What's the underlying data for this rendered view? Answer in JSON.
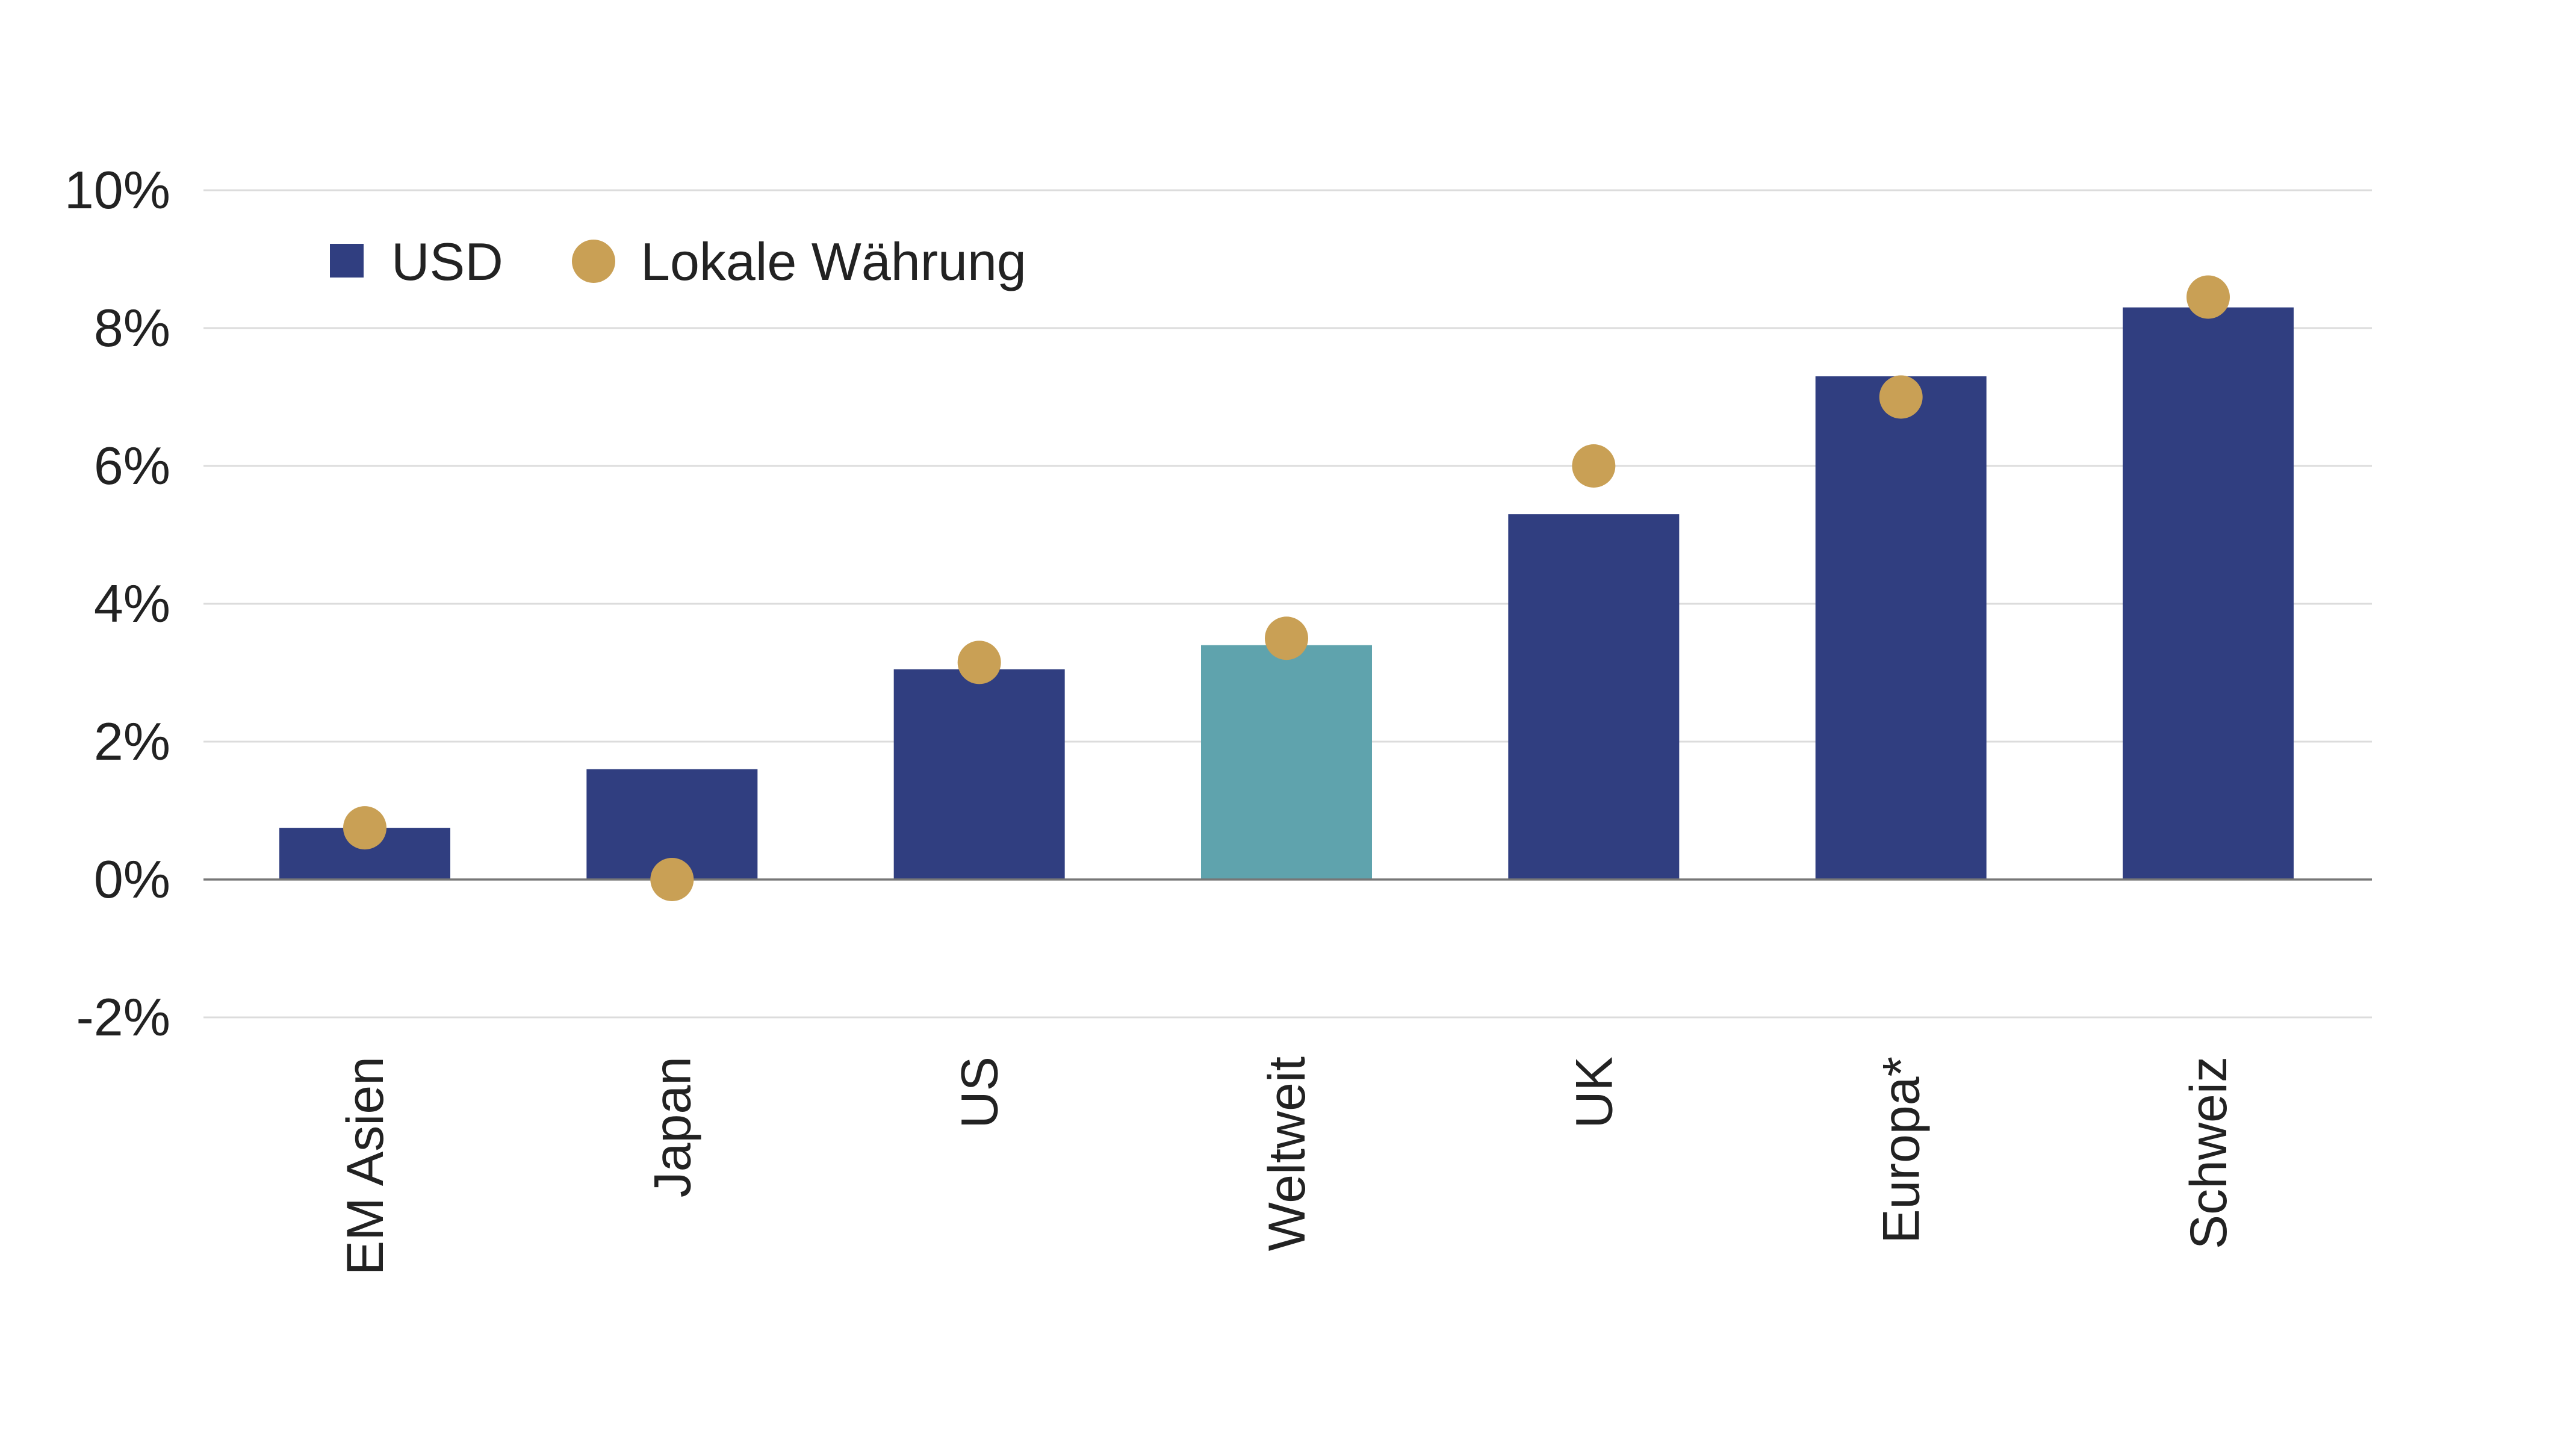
{
  "chart_data": {
    "type": "bar",
    "title": "",
    "xlabel": "",
    "ylabel": "",
    "categories": [
      "EM Asien",
      "Japan",
      "US",
      "Weltweit",
      "UK",
      "Europa*",
      "Schweiz"
    ],
    "series": [
      {
        "name": "USD",
        "kind": "bar",
        "color": "#303e80",
        "highlight": {
          "Weltweit": "#5fa3ad"
        },
        "values": [
          0.75,
          1.6,
          3.05,
          3.4,
          5.3,
          7.3,
          8.3
        ]
      },
      {
        "name": "Lokale Währung",
        "kind": "dot",
        "color": "#c9a055",
        "values": [
          0.75,
          0.0,
          3.15,
          3.5,
          6.0,
          7.0,
          8.45
        ]
      }
    ],
    "ylim": [
      -2,
      10
    ],
    "yticks": [
      -2,
      0,
      2,
      4,
      6,
      8,
      10
    ],
    "ytick_labels": [
      "-2%",
      "0%",
      "2%",
      "4%",
      "6%",
      "8%",
      "10%"
    ],
    "grid": true,
    "legend": {
      "placement": "top-left"
    }
  }
}
